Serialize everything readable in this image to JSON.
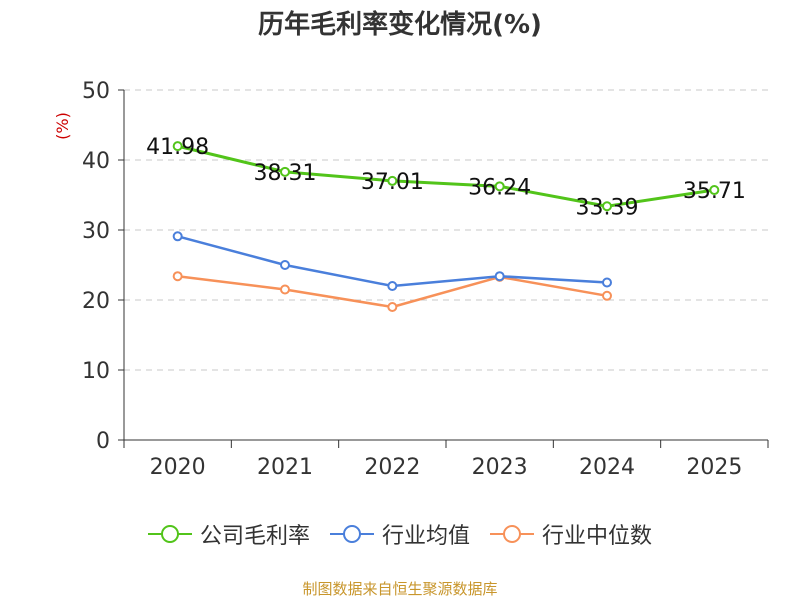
{
  "chart_data": {
    "type": "line",
    "title": "历年毛利率变化情况(%)",
    "ylabel": "(%)",
    "categories": [
      "2020",
      "2021",
      "2022",
      "2023",
      "2024",
      "2025"
    ],
    "ylim": [
      0,
      50
    ],
    "yticks": [
      0,
      10,
      20,
      30,
      40,
      50
    ],
    "grid": true,
    "legend_position": "bottom",
    "series": [
      {
        "name": "公司毛利率",
        "color": "#52c41a",
        "values": [
          41.98,
          38.31,
          37.01,
          36.24,
          33.39,
          35.71
        ],
        "labels": [
          "41.98",
          "38.31",
          "37.01",
          "36.24",
          "33.39",
          "35.71"
        ]
      },
      {
        "name": "行业均值",
        "color": "#4a7fdb",
        "values": [
          29.1,
          25.0,
          22.0,
          23.4,
          22.5,
          null
        ]
      },
      {
        "name": "行业中位数",
        "color": "#f79159",
        "values": [
          23.4,
          21.5,
          19.0,
          23.3,
          20.6,
          null
        ]
      }
    ]
  },
  "source": "制图数据来自恒生聚源数据库"
}
